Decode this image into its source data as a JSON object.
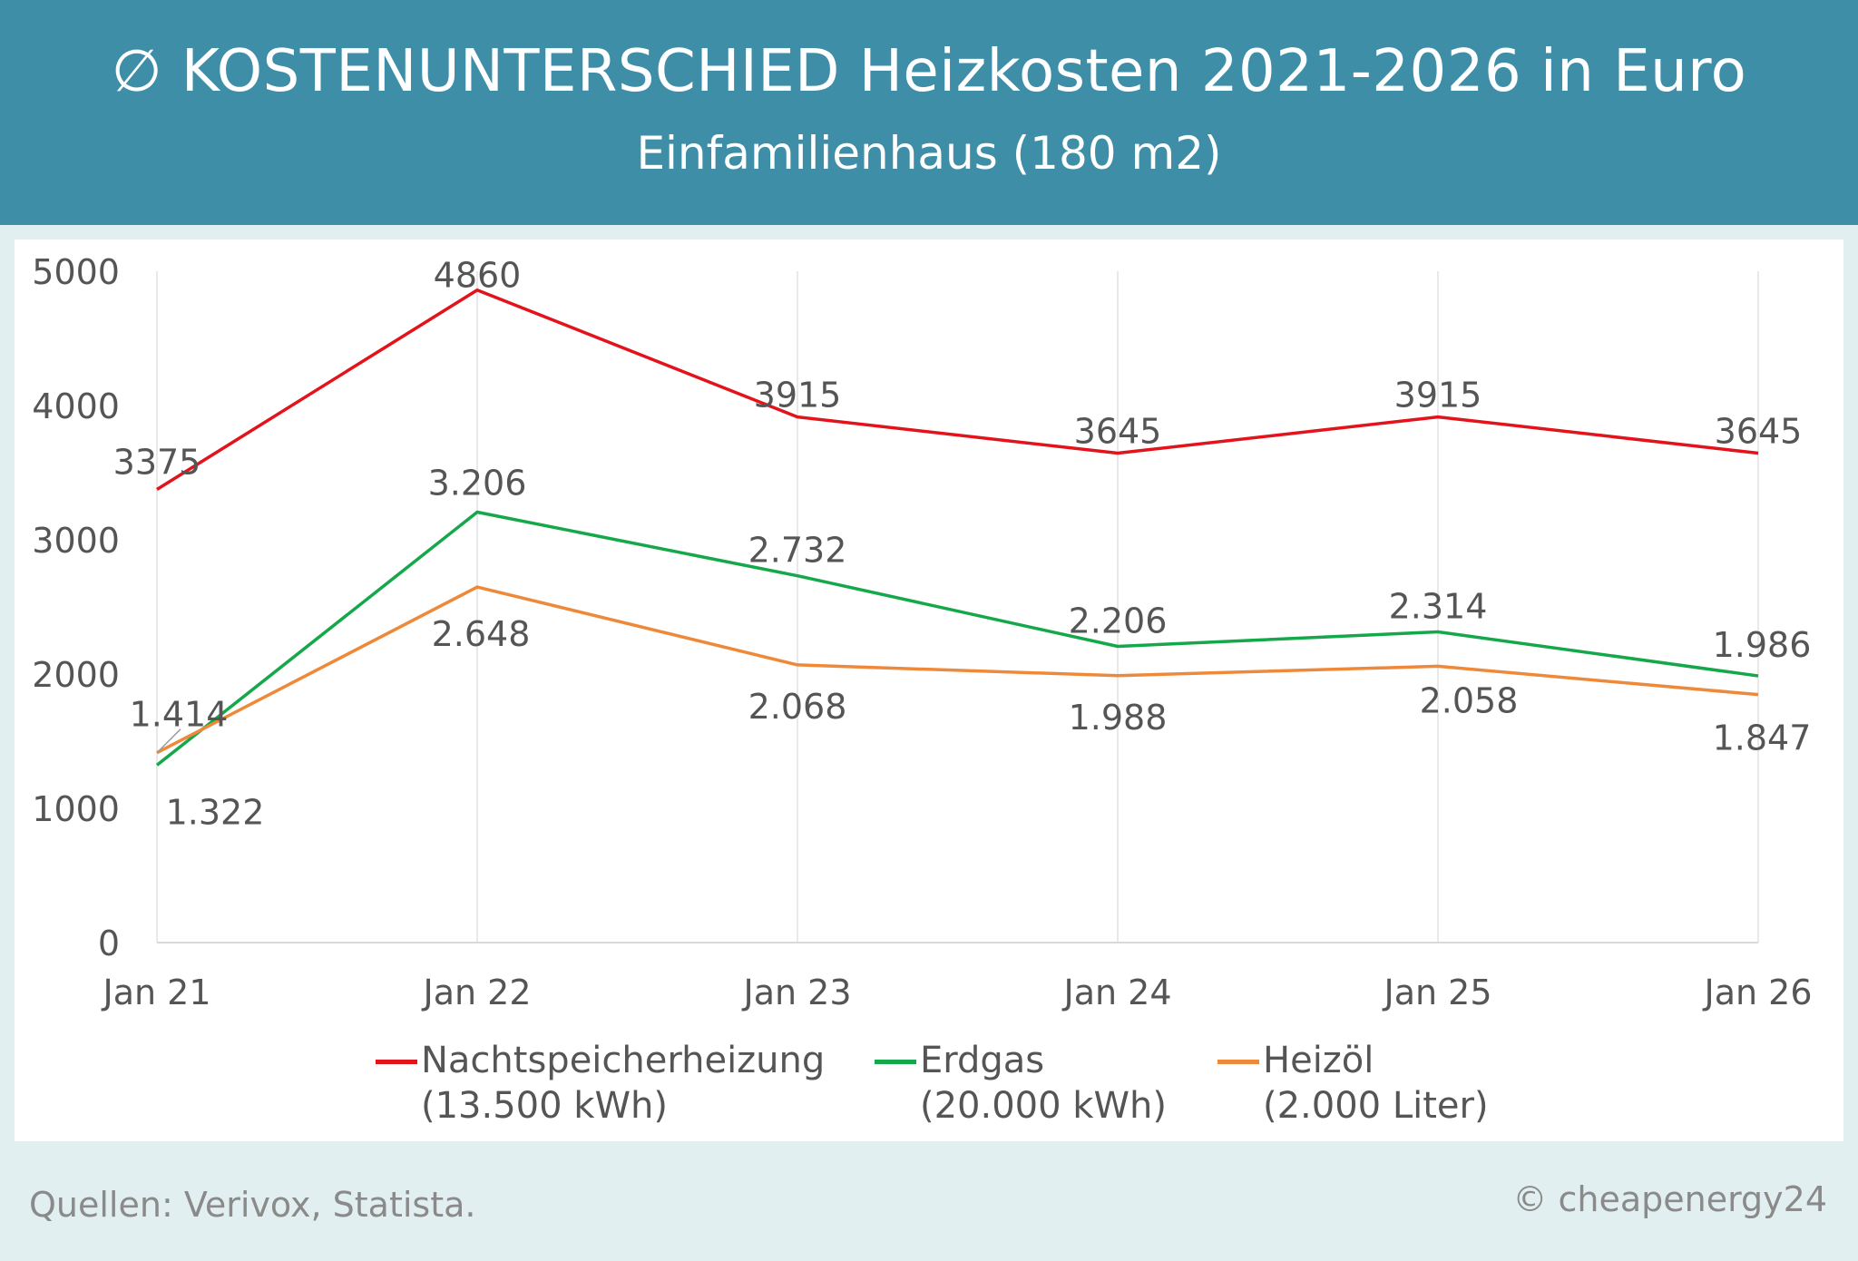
{
  "header": {
    "title": "∅ KOSTENUNTERSCHIED Heizkosten 2021-2026 in Euro",
    "subtitle": "Einfamilienhaus (180 m2)"
  },
  "chart_data": {
    "type": "line",
    "title": "∅ KOSTENUNTERSCHIED Heizkosten 2021-2026 in Euro",
    "subtitle": "Einfamilienhaus (180 m2)",
    "categories": [
      "Jan 21",
      "Jan 22",
      "Jan 23",
      "Jan 24",
      "Jan 25",
      "Jan 26"
    ],
    "ylim": [
      0,
      5000
    ],
    "yticks": [
      "0",
      "1000",
      "2000",
      "3000",
      "4000",
      "5000"
    ],
    "grid": "vertical",
    "legend_position": "bottom",
    "series": [
      {
        "name": "Nachtspeicherheizung",
        "sub": "(13.500 kWh)",
        "color": "#e3131b",
        "values": [
          3375,
          4860,
          3915,
          3645,
          3915,
          3645
        ],
        "labels": [
          "3375",
          "4860",
          "3915",
          "3645",
          "3915",
          "3645"
        ]
      },
      {
        "name": "Erdgas",
        "sub": "(20.000 kWh)",
        "color": "#14a84a",
        "values": [
          1322,
          3206,
          2732,
          2206,
          2314,
          1986
        ],
        "labels": [
          "1.322",
          "3.206",
          "2.732",
          "2.206",
          "2.314",
          "1.986"
        ]
      },
      {
        "name": "Heizöl",
        "sub": "(2.000 Liter)",
        "color": "#ee8939",
        "values": [
          1414,
          2648,
          2068,
          1988,
          2058,
          1847
        ],
        "labels": [
          "1.414",
          "2.648",
          "2.068",
          "1.988",
          "2.058",
          "1.847"
        ]
      }
    ]
  },
  "footer": {
    "source": "Quellen: Verivox, Statista.",
    "copyright": "© cheapenergy24"
  }
}
